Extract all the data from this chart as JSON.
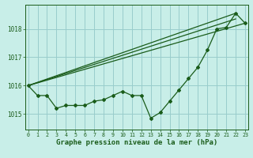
{
  "xlabel": "Graphe pression niveau de la mer (hPa)",
  "bg_color": "#c8eee8",
  "grid_color": "#99cccc",
  "line_color": "#1a5c1a",
  "data_series": [
    1016.0,
    1015.65,
    1015.65,
    1015.2,
    1015.3,
    1015.3,
    1015.3,
    1015.45,
    1015.5,
    1015.65,
    1015.8,
    1015.65,
    1015.65,
    1014.85,
    1015.05,
    1015.45,
    1015.85,
    1016.25,
    1016.65,
    1017.25,
    1018.0,
    1018.05,
    1018.55,
    1018.2
  ],
  "straight_lines": [
    {
      "x0": 0,
      "y0": 1016.0,
      "x1": 22,
      "y1": 1018.55
    },
    {
      "x0": 0,
      "y0": 1016.0,
      "x1": 22,
      "y1": 1018.35
    },
    {
      "x0": 0,
      "y0": 1016.0,
      "x1": 23,
      "y1": 1018.2
    }
  ],
  "xlim": [
    -0.3,
    23.3
  ],
  "ylim": [
    1014.45,
    1018.85
  ],
  "yticks": [
    1015,
    1016,
    1017,
    1018
  ],
  "xticks": [
    0,
    1,
    2,
    3,
    4,
    5,
    6,
    7,
    8,
    9,
    10,
    11,
    12,
    13,
    14,
    15,
    16,
    17,
    18,
    19,
    20,
    21,
    22,
    23
  ],
  "marker": "D",
  "marker_size": 2.0,
  "linewidth": 0.9,
  "xlabel_fontsize": 6.5,
  "ytick_fontsize": 5.5,
  "xtick_fontsize": 4.8
}
